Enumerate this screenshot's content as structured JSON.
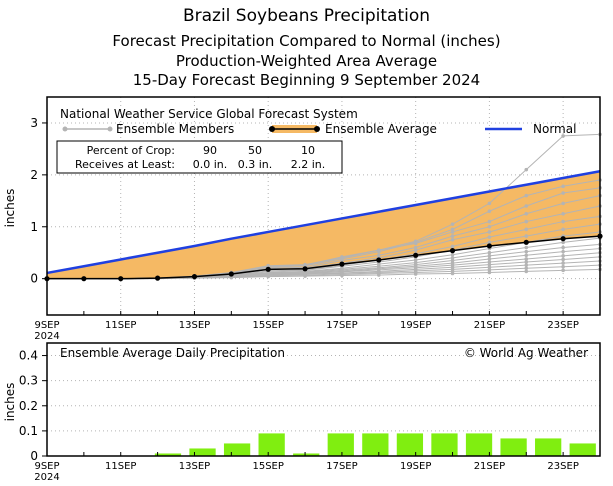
{
  "title": {
    "line1": "Brazil Soybeans Precipitation",
    "line2": "Forecast Precipitation Compared to Normal (inches)",
    "line3": "Production-Weighted Area Average",
    "line4": "15-Day Forecast Beginning 9 September 2024"
  },
  "colors": {
    "normal": "#2040e0",
    "fill": "#f5b964",
    "average": "#000000",
    "members": "#b4b4b4",
    "daily_bar": "#80ee10",
    "grid": "#b4b4b4"
  },
  "top_panel": {
    "source": "National Weather Service Global Forecast System",
    "legend_members": "Ensemble Members",
    "legend_average": "Ensemble Average",
    "legend_normal": "Normal",
    "table": {
      "row1_label": "Percent of Crop:",
      "row1_values": [
        "90",
        "50",
        "10"
      ],
      "row2_label": "Receives at Least:",
      "row2_values": [
        "0.0 in.",
        "0.3 in.",
        "2.2 in."
      ]
    }
  },
  "bottom_panel": {
    "title": "Ensemble Average Daily Precipitation",
    "credit": "© World Ag Weather"
  },
  "chart_data": [
    {
      "type": "line",
      "ylabel": "inches",
      "ylim": [
        -0.7,
        3.5
      ],
      "yticks": [
        0,
        1,
        2,
        3
      ],
      "x": [
        "9SEP",
        "10SEP",
        "11SEP",
        "12SEP",
        "13SEP",
        "14SEP",
        "15SEP",
        "16SEP",
        "17SEP",
        "18SEP",
        "19SEP",
        "20SEP",
        "21SEP",
        "22SEP",
        "23SEP",
        "24SEP"
      ],
      "xtick_labels": [
        "9SEP",
        "11SEP",
        "13SEP",
        "15SEP",
        "17SEP",
        "19SEP",
        "21SEP",
        "23SEP"
      ],
      "xtick_year": "2024",
      "grid": true,
      "series": [
        {
          "name": "Normal",
          "values": [
            0.11,
            0.24,
            0.37,
            0.5,
            0.63,
            0.77,
            0.9,
            1.03,
            1.16,
            1.29,
            1.42,
            1.55,
            1.68,
            1.81,
            1.94,
            2.07
          ]
        },
        {
          "name": "Ensemble Average",
          "values": [
            0.0,
            0.0,
            0.0,
            0.01,
            0.04,
            0.09,
            0.18,
            0.19,
            0.28,
            0.36,
            0.45,
            0.54,
            0.63,
            0.7,
            0.77,
            0.82
          ]
        }
      ],
      "members": [
        [
          0,
          0,
          0,
          0.01,
          0.05,
          0.12,
          0.25,
          0.27,
          0.4,
          0.55,
          0.72,
          1.05,
          1.45,
          2.1,
          2.75,
          2.78
        ],
        [
          0,
          0,
          0,
          0.01,
          0.04,
          0.1,
          0.22,
          0.25,
          0.38,
          0.52,
          0.7,
          0.95,
          1.3,
          1.6,
          1.78,
          1.9
        ],
        [
          0,
          0,
          0,
          0.01,
          0.05,
          0.11,
          0.24,
          0.26,
          0.42,
          0.55,
          0.68,
          0.9,
          1.1,
          1.4,
          1.65,
          1.75
        ],
        [
          0,
          0,
          0,
          0.01,
          0.04,
          0.09,
          0.2,
          0.22,
          0.35,
          0.45,
          0.6,
          0.82,
          1.0,
          1.25,
          1.45,
          1.6
        ],
        [
          0,
          0,
          0,
          0.01,
          0.03,
          0.08,
          0.18,
          0.2,
          0.3,
          0.4,
          0.55,
          0.75,
          0.9,
          1.1,
          1.25,
          1.4
        ],
        [
          0,
          0,
          0,
          0.01,
          0.03,
          0.07,
          0.15,
          0.17,
          0.26,
          0.36,
          0.48,
          0.62,
          0.8,
          0.95,
          1.1,
          1.2
        ],
        [
          0,
          0,
          0,
          0.01,
          0.03,
          0.07,
          0.14,
          0.16,
          0.24,
          0.32,
          0.42,
          0.55,
          0.7,
          0.82,
          0.95,
          1.05
        ],
        [
          0,
          0,
          0,
          0.01,
          0.03,
          0.06,
          0.12,
          0.14,
          0.2,
          0.28,
          0.36,
          0.46,
          0.58,
          0.7,
          0.82,
          0.9
        ],
        [
          0,
          0,
          0,
          0.01,
          0.03,
          0.06,
          0.11,
          0.13,
          0.18,
          0.24,
          0.31,
          0.4,
          0.5,
          0.6,
          0.7,
          0.78
        ],
        [
          0,
          0,
          0,
          0.01,
          0.02,
          0.05,
          0.1,
          0.12,
          0.16,
          0.21,
          0.27,
          0.35,
          0.44,
          0.52,
          0.6,
          0.66
        ],
        [
          0,
          0,
          0,
          0.01,
          0.02,
          0.05,
          0.09,
          0.11,
          0.14,
          0.19,
          0.24,
          0.3,
          0.38,
          0.45,
          0.52,
          0.58
        ],
        [
          0,
          0,
          0,
          0.01,
          0.02,
          0.04,
          0.08,
          0.1,
          0.13,
          0.17,
          0.21,
          0.26,
          0.32,
          0.38,
          0.44,
          0.5
        ],
        [
          0,
          0,
          0,
          0.01,
          0.02,
          0.04,
          0.07,
          0.09,
          0.11,
          0.14,
          0.18,
          0.22,
          0.27,
          0.32,
          0.37,
          0.42
        ],
        [
          0,
          0,
          0,
          0.0,
          0.02,
          0.03,
          0.06,
          0.08,
          0.1,
          0.12,
          0.15,
          0.18,
          0.22,
          0.26,
          0.3,
          0.34
        ],
        [
          0,
          0,
          0,
          0.0,
          0.01,
          0.03,
          0.05,
          0.06,
          0.08,
          0.1,
          0.12,
          0.14,
          0.17,
          0.2,
          0.23,
          0.26
        ],
        [
          0,
          0,
          0,
          0.0,
          0.01,
          0.02,
          0.04,
          0.05,
          0.06,
          0.07,
          0.09,
          0.1,
          0.12,
          0.14,
          0.16,
          0.18
        ]
      ]
    },
    {
      "type": "bar",
      "ylabel": "inches",
      "ylim": [
        0,
        0.45
      ],
      "yticks": [
        0,
        0.1,
        0.2,
        0.3,
        0.4
      ],
      "ytick_labels": [
        "0",
        "0.1",
        "0.2",
        "0.3",
        "0.4"
      ],
      "categories": [
        "9SEP",
        "10SEP",
        "11SEP",
        "12SEP",
        "13SEP",
        "14SEP",
        "15SEP",
        "16SEP",
        "17SEP",
        "18SEP",
        "19SEP",
        "20SEP",
        "21SEP",
        "22SEP",
        "23SEP",
        "24SEP"
      ],
      "xtick_labels": [
        "9SEP",
        "11SEP",
        "13SEP",
        "15SEP",
        "17SEP",
        "19SEP",
        "21SEP",
        "23SEP"
      ],
      "xtick_year": "2024",
      "values": [
        0.0,
        0.0,
        0.0,
        0.01,
        0.03,
        0.05,
        0.09,
        0.01,
        0.09,
        0.09,
        0.09,
        0.09,
        0.09,
        0.07,
        0.07,
        0.05
      ],
      "grid": true
    }
  ]
}
